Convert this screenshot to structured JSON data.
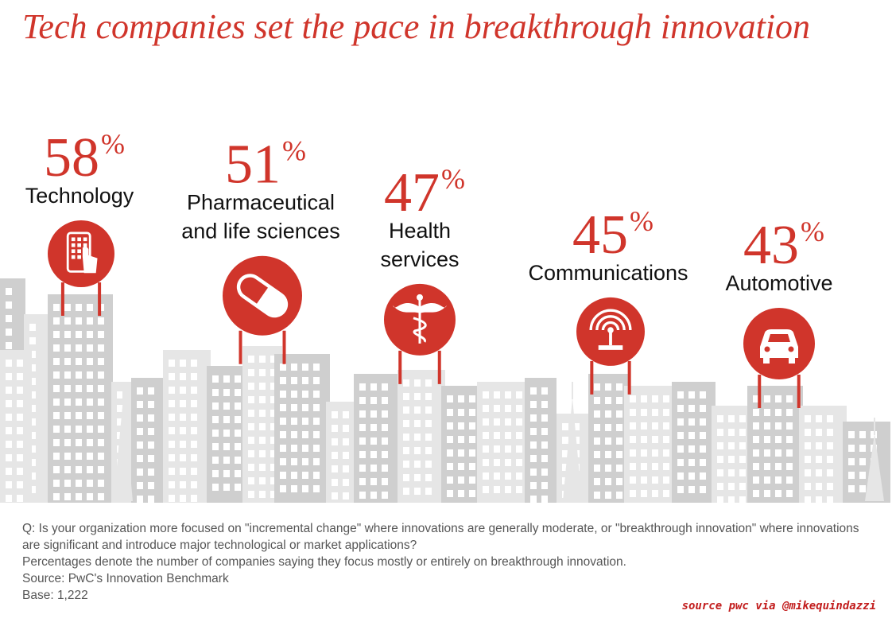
{
  "title": "Tech companies set the pace in breakthrough innovation",
  "chart_data": {
    "type": "bar",
    "title": "Tech companies set the pace in breakthrough innovation",
    "categories": [
      "Technology",
      "Pharmaceutical and life sciences",
      "Health services",
      "Communications",
      "Automotive"
    ],
    "values": [
      58,
      51,
      47,
      45,
      43
    ],
    "value_suffix": "%",
    "category_lines": [
      [
        "Technology"
      ],
      [
        "Pharmaceutical",
        "and life sciences"
      ],
      [
        "Health",
        "services"
      ],
      [
        "Communications"
      ],
      [
        "Automotive"
      ]
    ],
    "icons": [
      "tablet-touch-icon",
      "pill-capsule-icon",
      "caduceus-icon",
      "antenna-signal-icon",
      "car-icon"
    ],
    "ylabel": "",
    "xlabel": ""
  },
  "footer": {
    "question": "Q: Is your organization more focused on \"incremental change\" where innovations are generally moderate, or \"breakthrough innovation\" where innovations are significant and introduce major technological or market applications?",
    "percent_note": "Percentages denote the number of companies saying they focus mostly or entirely on breakthrough innovation.",
    "source": "Source: PwC's Innovation Benchmark",
    "base": "Base: 1,222",
    "credit": "source pwc via @mikequindazzi"
  },
  "colors": {
    "accent": "#d0352b",
    "building_light": "#e6e6e6",
    "building_dark": "#cfcfcf",
    "window": "#ffffff"
  }
}
